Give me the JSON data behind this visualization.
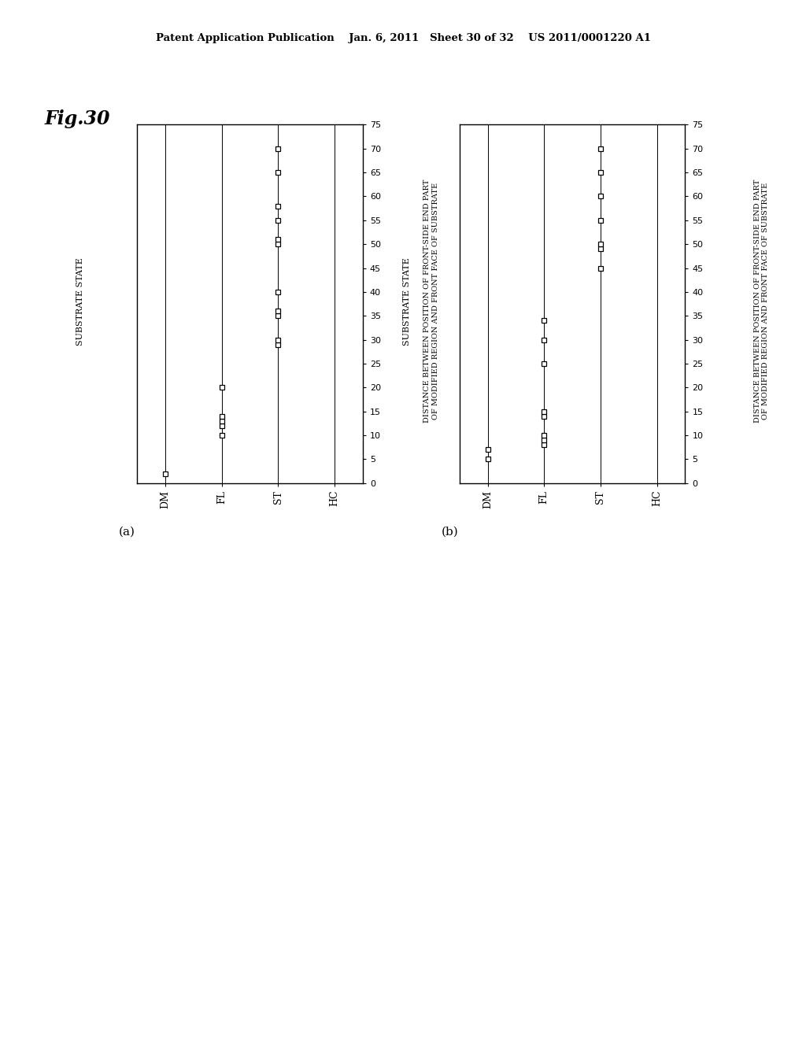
{
  "header": "Patent Application Publication    Jan. 6, 2011   Sheet 30 of 32    US 2011/0001220 A1",
  "fig_label": "Fig.30",
  "subplot_a_label": "(a)",
  "subplot_b_label": "(b)",
  "x_categories": [
    "DM",
    "FL",
    "ST",
    "HC"
  ],
  "x_label": "SUBSTRATE STATE",
  "y_label_line1": "DISTANCE BETWEEN POSITION OF FRONT-SIDE END PART",
  "y_label_line2": "OF MODIFIED REGION AND FRONT FACE OF SUBSTRATE",
  "y_min": 0,
  "y_max": 75,
  "y_ticks": [
    0,
    5,
    10,
    15,
    20,
    25,
    30,
    35,
    40,
    45,
    50,
    55,
    60,
    65,
    70,
    75
  ],
  "plot_a": {
    "DM": [
      2
    ],
    "FL": [
      10,
      12,
      13,
      14,
      20
    ],
    "ST": [
      29,
      30,
      35,
      36,
      40,
      50,
      51,
      55,
      58,
      65,
      70
    ],
    "HC": []
  },
  "plot_b": {
    "DM": [
      5,
      7
    ],
    "FL": [
      8,
      9,
      10,
      14,
      15,
      25,
      30,
      34
    ],
    "ST": [
      45,
      49,
      50,
      55,
      60,
      65,
      70
    ],
    "HC": []
  },
  "marker_size": 5,
  "marker_facecolor": "white",
  "marker_edgecolor": "black",
  "marker_edgewidth": 0.9,
  "fig_bg": "white",
  "header_fontsize": 9.5,
  "fig_label_fontsize": 17,
  "tick_fontsize": 8,
  "cat_fontsize": 9,
  "ylabel_fontsize": 7,
  "xlabel_fontsize": 8
}
